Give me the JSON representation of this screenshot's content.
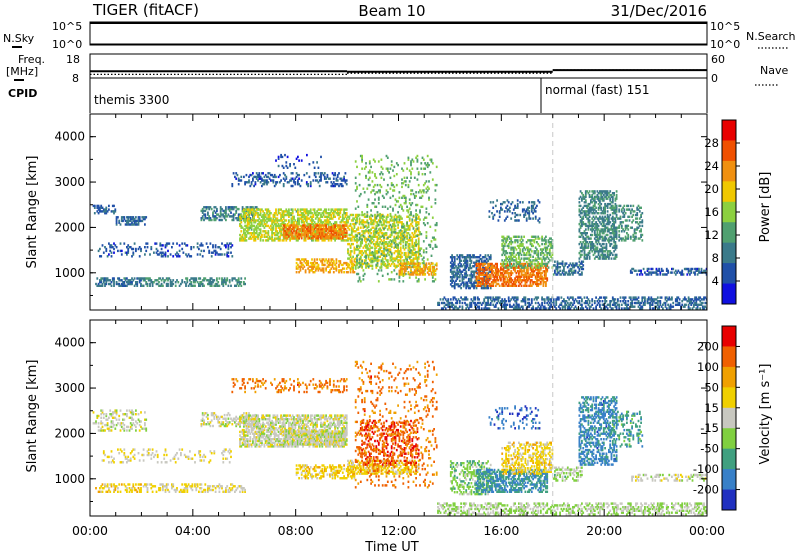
{
  "header": {
    "radar": "TIGER (fitACF)",
    "beam": "Beam 10",
    "date": "31/Dec/2016"
  },
  "status_panels": {
    "nsky_label": "N.Sky",
    "nsearch_label": "N.Search",
    "log_tick_top": "10^5",
    "log_tick_bottom": "10^0",
    "freq_label_top": "Freq.",
    "freq_label_bottom": "[MHz]",
    "freq_ticks": [
      "18",
      "8"
    ],
    "nave_label": "Nave",
    "nave_ticks": [
      "60",
      "0"
    ],
    "cpid_label": "CPID",
    "cpid_segments": [
      {
        "name": "themis 3300",
        "start_hour": 0,
        "end_hour": 18
      },
      {
        "name": "normal (fast) 151",
        "start_hour": 18,
        "end_hour": 24
      }
    ],
    "freq_mhz": [
      {
        "start_hour": 0,
        "end_hour": 10,
        "value": 10.8
      },
      {
        "start_hour": 10,
        "end_hour": 18,
        "value": 10.6
      },
      {
        "start_hour": 18,
        "end_hour": 24,
        "value": 11.3
      }
    ],
    "nave": [
      {
        "start_hour": 0,
        "end_hour": 10,
        "value": 9
      },
      {
        "start_hour": 10,
        "end_hour": 18,
        "value": 12
      },
      {
        "start_hour": 18,
        "end_hour": 24,
        "value": 20
      }
    ]
  },
  "colors": {
    "power_scale": [
      "#1010e0",
      "#2050a8",
      "#3a7a8a",
      "#50a070",
      "#8cd040",
      "#f0c800",
      "#f09010",
      "#f05000",
      "#e80000"
    ],
    "velocity_scale": [
      "#2030c0",
      "#3880c8",
      "#40a080",
      "#80d040",
      "#c8c8c0",
      "#f0d000",
      "#f0a000",
      "#f06000",
      "#e80000"
    ],
    "mode_change_line": "#c8c8c8"
  },
  "chart_data": [
    {
      "type": "heatmap",
      "panel": "power",
      "ylabel": "Slant Range [km]",
      "xlabel": "Time UT",
      "xlim_hours": [
        0,
        24
      ],
      "ylim_km": [
        180,
        4500
      ],
      "y_ticks": [
        "4000",
        "3000",
        "2000",
        "1000"
      ],
      "x_ticks": [
        "00:00",
        "04:00",
        "08:00",
        "12:00",
        "16:00",
        "20:00",
        "00:00"
      ],
      "colorbar_label": "Power [dB]",
      "colorbar_ticks": [
        "28",
        "24",
        "20",
        "16",
        "12",
        "8",
        "4"
      ],
      "colorbar_range_db": [
        0,
        32
      ],
      "mode_change_hour": 18,
      "scatter_regions": [
        {
          "t0": 0.2,
          "t1": 2.0,
          "r0": 700,
          "r1": 900,
          "value": 8,
          "density": 0.55
        },
        {
          "t0": 0.3,
          "t1": 5.5,
          "r0": 1350,
          "r1": 1650,
          "value": 6,
          "density": 0.2
        },
        {
          "t0": 0.1,
          "t1": 1.0,
          "r0": 2300,
          "r1": 2500,
          "value": 6,
          "density": 0.5
        },
        {
          "t0": 1.0,
          "t1": 2.2,
          "r0": 2050,
          "r1": 2250,
          "value": 7,
          "density": 0.5
        },
        {
          "t0": 2.0,
          "t1": 6.0,
          "r0": 700,
          "r1": 900,
          "value": 10,
          "density": 0.45
        },
        {
          "t0": 4.3,
          "t1": 6.5,
          "r0": 2150,
          "r1": 2450,
          "value": 9,
          "density": 0.5
        },
        {
          "t0": 5.8,
          "t1": 10.0,
          "r0": 1700,
          "r1": 2400,
          "value": 17,
          "density": 0.55
        },
        {
          "t0": 7.5,
          "t1": 10.0,
          "r0": 1750,
          "r1": 2050,
          "value": 24,
          "density": 0.65
        },
        {
          "t0": 5.5,
          "t1": 10.0,
          "r0": 2900,
          "r1": 3200,
          "value": 6,
          "density": 0.25
        },
        {
          "t0": 7.2,
          "t1": 9.0,
          "r0": 3300,
          "r1": 3600,
          "value": 5,
          "density": 0.1
        },
        {
          "t0": 8.0,
          "t1": 10.3,
          "r0": 1000,
          "r1": 1300,
          "value": 22,
          "density": 0.45
        },
        {
          "t0": 10.0,
          "t1": 12.8,
          "r0": 1100,
          "r1": 2300,
          "value": 18,
          "density": 0.45
        },
        {
          "t0": 10.3,
          "t1": 13.5,
          "r0": 800,
          "r1": 3600,
          "value": 14,
          "density": 0.12
        },
        {
          "t0": 12.0,
          "t1": 13.5,
          "r0": 950,
          "r1": 1200,
          "value": 22,
          "density": 0.5
        },
        {
          "t0": 14.0,
          "t1": 15.6,
          "r0": 650,
          "r1": 1400,
          "value": 7,
          "density": 0.5
        },
        {
          "t0": 15.0,
          "t1": 17.8,
          "r0": 700,
          "r1": 1200,
          "value": 25,
          "density": 0.6
        },
        {
          "t0": 16.0,
          "t1": 18.0,
          "r0": 1100,
          "r1": 1800,
          "value": 14,
          "density": 0.45
        },
        {
          "t0": 15.5,
          "t1": 17.5,
          "r0": 2100,
          "r1": 2600,
          "value": 7,
          "density": 0.2
        },
        {
          "t0": 18.0,
          "t1": 19.2,
          "r0": 950,
          "r1": 1250,
          "value": 8,
          "density": 0.45
        },
        {
          "t0": 19.0,
          "t1": 20.5,
          "r0": 1300,
          "r1": 2800,
          "value": 10,
          "density": 0.5
        },
        {
          "t0": 20.3,
          "t1": 21.5,
          "r0": 1700,
          "r1": 2500,
          "value": 11,
          "density": 0.3
        },
        {
          "t0": 21.0,
          "t1": 24.0,
          "r0": 950,
          "r1": 1100,
          "value": 6,
          "density": 0.4
        },
        {
          "t0": 13.5,
          "t1": 24.0,
          "r0": 200,
          "r1": 450,
          "value": 7,
          "density": 0.45
        }
      ]
    },
    {
      "type": "heatmap",
      "panel": "velocity",
      "ylabel": "Slant Range [km]",
      "xlabel": "Time UT",
      "xlim_hours": [
        0,
        24
      ],
      "ylim_km": [
        180,
        4500
      ],
      "y_ticks": [
        "4000",
        "3000",
        "2000",
        "1000"
      ],
      "x_ticks": [
        "00:00",
        "04:00",
        "08:00",
        "12:00",
        "16:00",
        "20:00",
        "00:00"
      ],
      "colorbar_label": "Velocity [m s⁻¹]",
      "colorbar_ticks": [
        "200",
        "100",
        "50",
        "15",
        "-15",
        "-50",
        "-100",
        "-200"
      ],
      "colorbar_range_ms": [
        -250,
        250
      ],
      "mode_change_hour": 18,
      "scatter_regions": [
        {
          "t0": 0.2,
          "t1": 2.0,
          "r0": 700,
          "r1": 900,
          "value": 60,
          "density": 0.35
        },
        {
          "t0": 0.3,
          "t1": 5.5,
          "r0": 1350,
          "r1": 1650,
          "value": 20,
          "density": 0.15
        },
        {
          "t0": 0.1,
          "t1": 2.2,
          "r0": 2050,
          "r1": 2500,
          "value": 0,
          "density": 0.3
        },
        {
          "t0": 2.0,
          "t1": 6.0,
          "r0": 700,
          "r1": 900,
          "value": 30,
          "density": 0.3
        },
        {
          "t0": 4.3,
          "t1": 6.5,
          "r0": 2150,
          "r1": 2450,
          "value": 0,
          "density": 0.3
        },
        {
          "t0": 5.8,
          "t1": 10.0,
          "r0": 1700,
          "r1": 2400,
          "value": 0,
          "density": 0.6
        },
        {
          "t0": 7.5,
          "t1": 10.0,
          "r0": 1750,
          "r1": 2050,
          "value": 0,
          "density": 0.7
        },
        {
          "t0": 5.5,
          "t1": 10.0,
          "r0": 2900,
          "r1": 3200,
          "value": 150,
          "density": 0.2
        },
        {
          "t0": 8.0,
          "t1": 10.3,
          "r0": 1000,
          "r1": 1300,
          "value": 60,
          "density": 0.45
        },
        {
          "t0": 10.0,
          "t1": 12.8,
          "r0": 1100,
          "r1": 1400,
          "value": 55,
          "density": 0.5
        },
        {
          "t0": 10.5,
          "t1": 12.8,
          "r0": 1300,
          "r1": 2300,
          "value": 190,
          "density": 0.3
        },
        {
          "t0": 10.3,
          "t1": 13.5,
          "r0": 800,
          "r1": 3600,
          "value": 150,
          "density": 0.1
        },
        {
          "t0": 14.0,
          "t1": 15.6,
          "r0": 650,
          "r1": 1400,
          "value": -60,
          "density": 0.4
        },
        {
          "t0": 15.0,
          "t1": 17.8,
          "r0": 700,
          "r1": 1200,
          "value": -130,
          "density": 0.55
        },
        {
          "t0": 16.0,
          "t1": 18.0,
          "r0": 1100,
          "r1": 1800,
          "value": 50,
          "density": 0.4
        },
        {
          "t0": 15.5,
          "t1": 17.5,
          "r0": 2100,
          "r1": 2600,
          "value": -180,
          "density": 0.15
        },
        {
          "t0": 18.0,
          "t1": 19.2,
          "r0": 950,
          "r1": 1250,
          "value": -40,
          "density": 0.35
        },
        {
          "t0": 19.0,
          "t1": 20.5,
          "r0": 1300,
          "r1": 2800,
          "value": -150,
          "density": 0.45
        },
        {
          "t0": 20.3,
          "t1": 21.5,
          "r0": 1700,
          "r1": 2500,
          "value": -120,
          "density": 0.25
        },
        {
          "t0": 21.0,
          "t1": 24.0,
          "r0": 950,
          "r1": 1100,
          "value": 0,
          "density": 0.3
        },
        {
          "t0": 13.5,
          "t1": 24.0,
          "r0": 200,
          "r1": 450,
          "value": -25,
          "density": 0.4
        }
      ]
    }
  ]
}
